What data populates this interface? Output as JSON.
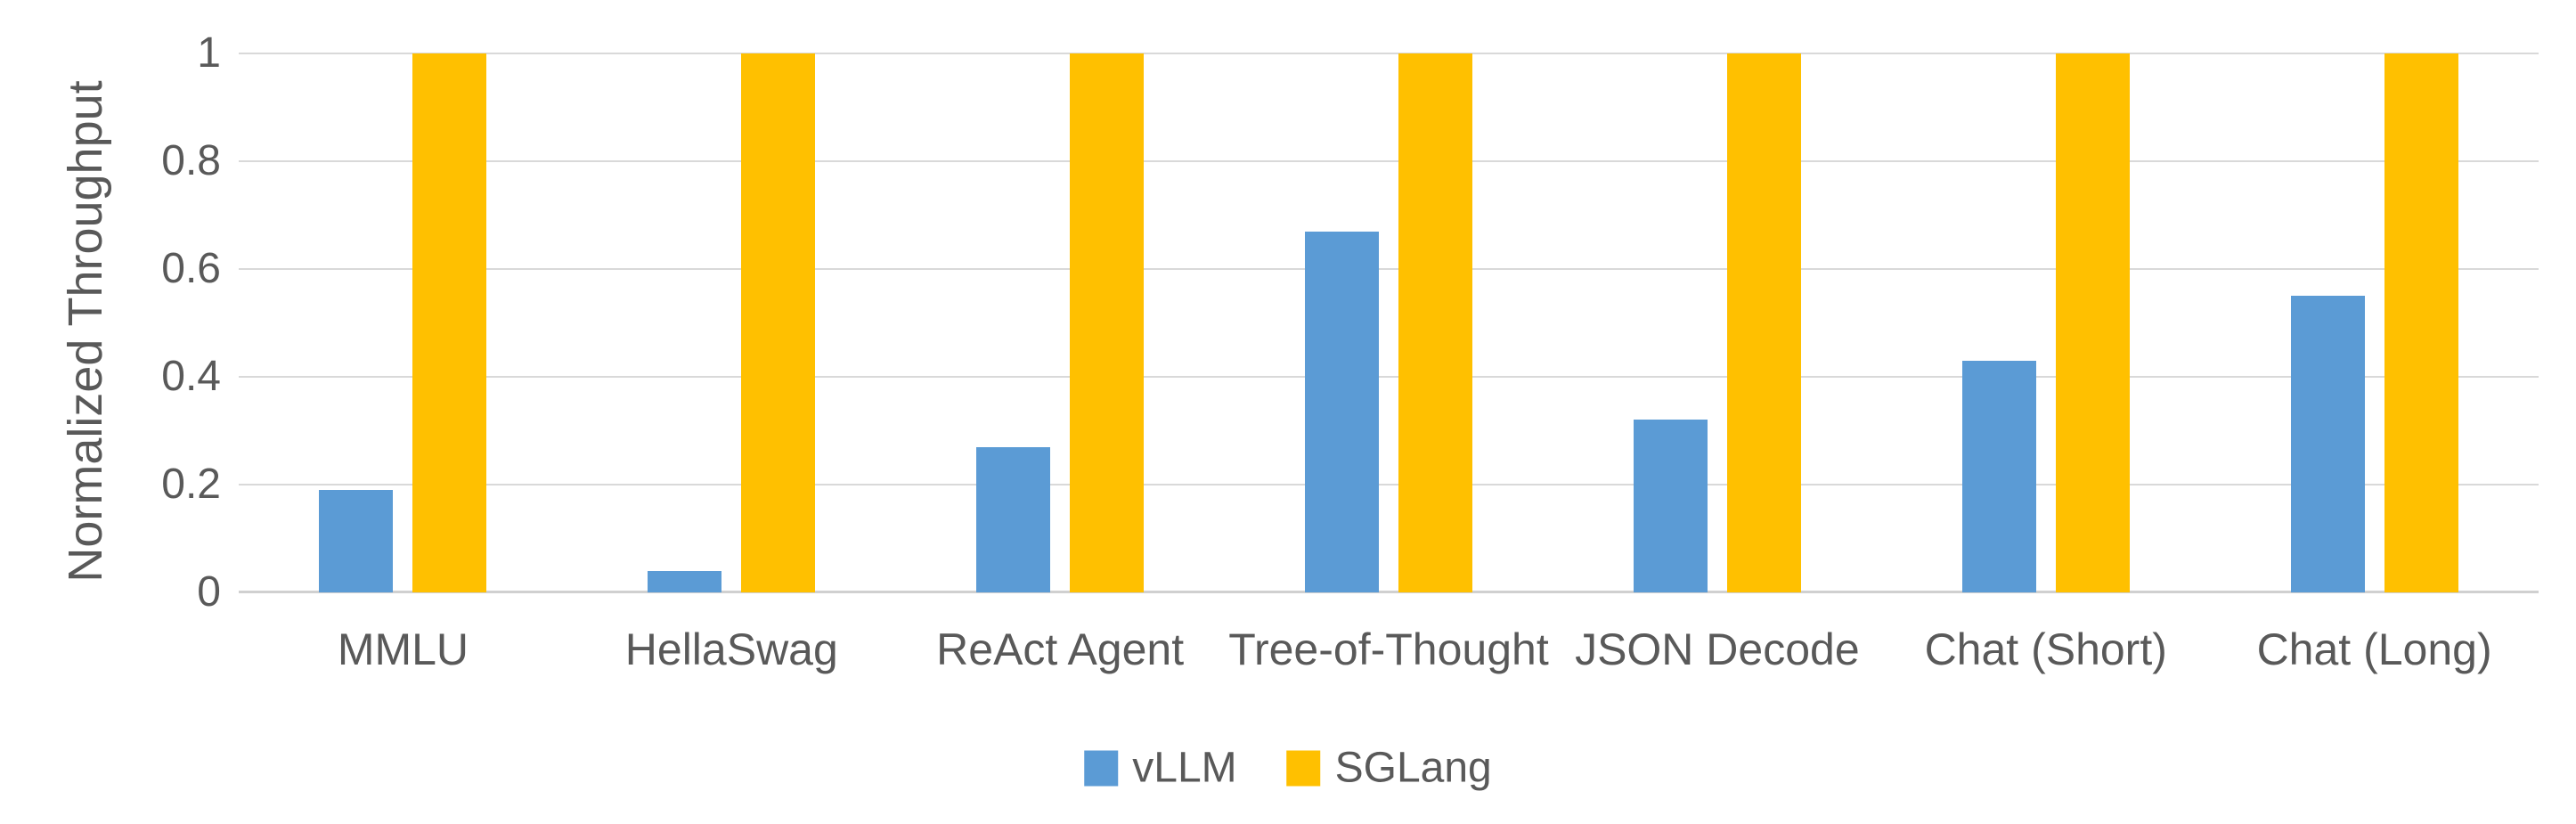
{
  "chart_data": {
    "type": "bar",
    "title": "",
    "xlabel": "",
    "ylabel": "Normalized Throughput",
    "categories": [
      "MMLU",
      "HellaSwag",
      "ReAct Agent",
      "Tree-of-Thought",
      "JSON Decode",
      "Chat (Short)",
      "Chat (Long)"
    ],
    "series": [
      {
        "name": "vLLM",
        "color": "#5B9BD5",
        "values": [
          0.19,
          0.04,
          0.27,
          0.67,
          0.32,
          0.43,
          0.55
        ]
      },
      {
        "name": "SGLang",
        "color": "#FFC000",
        "values": [
          1,
          1,
          1,
          1,
          1,
          1,
          1
        ]
      }
    ],
    "ylim": [
      0,
      1
    ],
    "yticks": [
      0,
      0.2,
      0.4,
      0.6,
      0.8,
      1
    ],
    "ytick_labels_top_to_bottom": [
      "1",
      "0.8",
      "0.6",
      "0.4",
      "0.2",
      "0"
    ],
    "grid": "horizontal",
    "legend_position": "bottom",
    "colors": {
      "text": "#595959",
      "gridline": "#D9D9D9",
      "axis_line": "#D0D0D0",
      "background": "#FFFFFF"
    }
  }
}
